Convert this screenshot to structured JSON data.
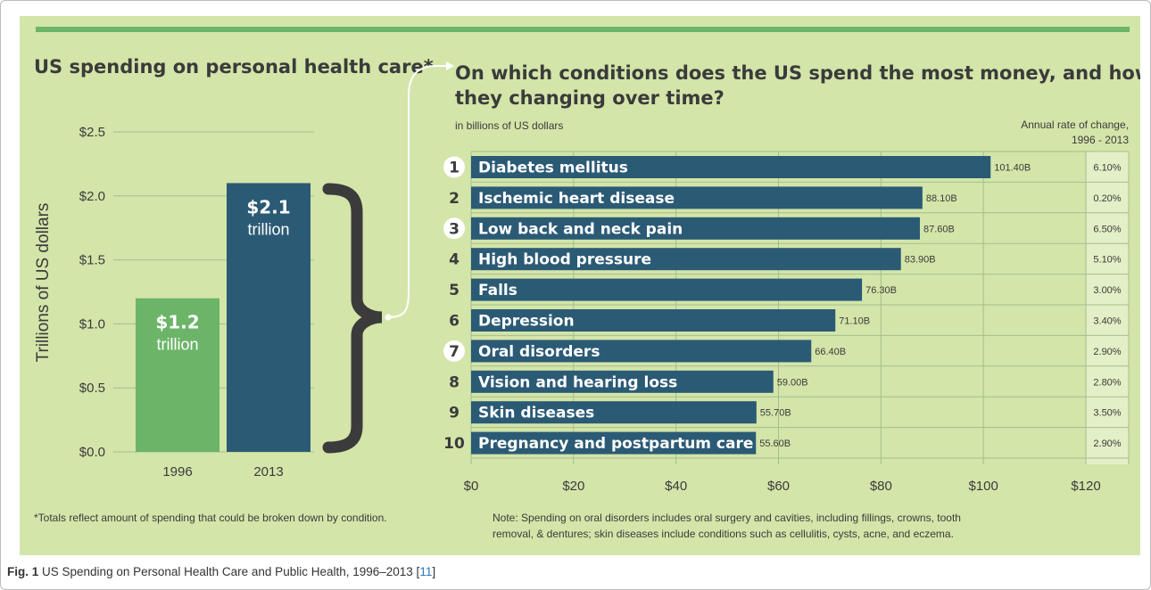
{
  "colors": {
    "panel": "#d3e5a9",
    "top_bar": "#6bb468",
    "bar_green": "#6bb468",
    "bar_blue": "#2b5a75",
    "grid": "#a4bf8c",
    "text": "#3b3b3b"
  },
  "chart_data": [
    {
      "type": "bar",
      "title": "US spending on personal health care*",
      "ylabel": "Trillions of US dollars",
      "categories": [
        "1996",
        "2013"
      ],
      "values": [
        1.2,
        2.1
      ],
      "value_labels": [
        [
          "$1.2",
          "trillion"
        ],
        [
          "$2.1",
          "trillion"
        ]
      ],
      "ylim": [
        0,
        2.5
      ],
      "yticks": [
        "$0.0",
        "$0.5",
        "$1.0",
        "$1.5",
        "$2.0",
        "$2.5"
      ],
      "grid": true,
      "footnote": "*Totals reflect amount of spending that could be broken down by condition."
    },
    {
      "type": "bar",
      "orientation": "horizontal",
      "title_line1": "On which conditions does the US spend the most money, and how are",
      "title_line2": "they changing over time?",
      "subtitle": "in billions of US dollars",
      "rate_header_line1": "Annual rate of change,",
      "rate_header_line2": "1996 - 2013",
      "ranks": [
        "1",
        "2",
        "3",
        "4",
        "5",
        "6",
        "7",
        "8",
        "9",
        "10"
      ],
      "highlighted_ranks": [
        "1",
        "3",
        "7"
      ],
      "categories": [
        "Diabetes mellitus",
        "Ischemic heart disease",
        "Low back and neck pain",
        "High blood pressure",
        "Falls",
        "Depression",
        "Oral disorders",
        "Vision and hearing loss",
        "Skin diseases",
        "Pregnancy and postpartum care"
      ],
      "values": [
        101.4,
        88.1,
        87.6,
        83.9,
        76.3,
        71.1,
        66.4,
        59.0,
        55.7,
        55.6
      ],
      "value_labels": [
        "101.40B",
        "88.10B",
        "87.60B",
        "83.90B",
        "76.30B",
        "71.10B",
        "66.40B",
        "59.00B",
        "55.70B",
        "55.60B"
      ],
      "annual_rate_of_change": [
        "6.10%",
        "0.20%",
        "6.50%",
        "5.10%",
        "3.00%",
        "3.40%",
        "2.90%",
        "2.80%",
        "3.50%",
        "2.90%"
      ],
      "xlim": [
        0,
        120
      ],
      "xticks": [
        "$0",
        "$20",
        "$40",
        "$60",
        "$80",
        "$100",
        "$120"
      ],
      "grid": true,
      "note_line1": "Note: Spending on oral disorders includes oral surgery and cavities, including fillings, crowns, tooth",
      "note_line2": "removal, & dentures; skin diseases include conditions such as cellulitis, cysts, acne, and eczema."
    }
  ],
  "caption": {
    "label": "Fig. 1",
    "text": " US Spending on Personal Health Care and Public Health, 1996–2013 [",
    "ref": "11",
    "end": "]"
  }
}
